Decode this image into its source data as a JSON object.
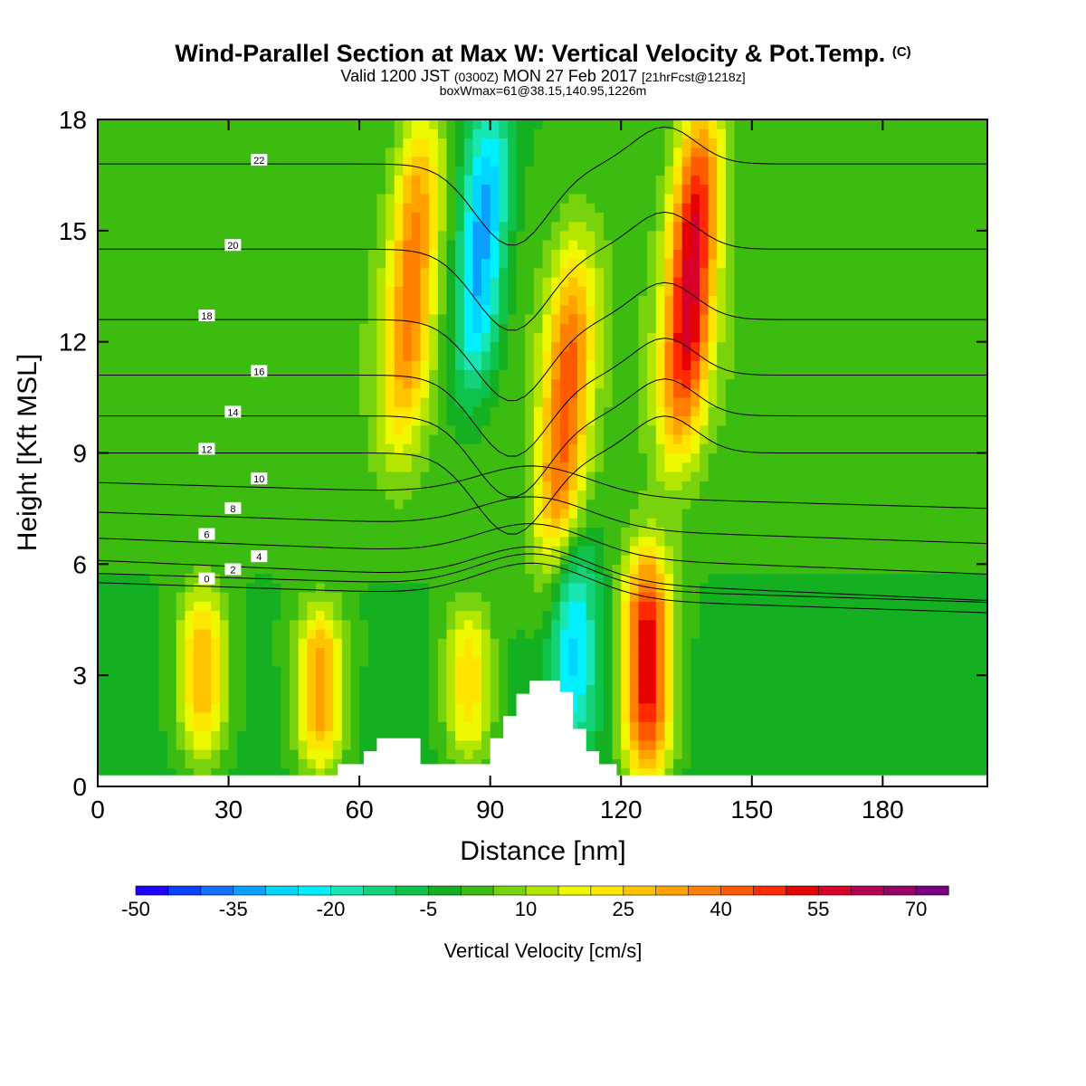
{
  "header": {
    "title": "Wind-Parallel Section at Max W: Vertical Velocity & Pot.Temp.",
    "title_mark": "(C)",
    "valid_prefix": "Valid 1200 JST",
    "valid_utc": "(0300Z)",
    "valid_date": "MON 27 Feb 2017",
    "valid_run": "[21hrFcst@1218z]",
    "box_info": "boxWmax=61@38.15,140.95,1226m"
  },
  "chart_data": {
    "type": "heatmap",
    "xlabel": "Distance [nm]",
    "ylabel": "Height [Kft MSL]",
    "xlim": [
      0,
      204
    ],
    "ylim": [
      0,
      18
    ],
    "xticks": [
      0,
      30,
      60,
      90,
      120,
      150,
      180
    ],
    "yticks": [
      0,
      3,
      6,
      9,
      12,
      15,
      18
    ],
    "colorbar": {
      "title": "Vertical Velocity [cm/s]",
      "levels": [
        -50,
        -45,
        -40,
        -35,
        -30,
        -25,
        -20,
        -15,
        -10,
        -5,
        0,
        5,
        10,
        15,
        20,
        25,
        30,
        35,
        40,
        45,
        50,
        55,
        60,
        65,
        70,
        75
      ],
      "tick_labels": [
        -50,
        -35,
        -20,
        -5,
        10,
        25,
        40,
        55,
        70
      ],
      "colors": [
        "#1e00ff",
        "#0c40ff",
        "#1670ff",
        "#0aa0ff",
        "#00d6ff",
        "#00f0ff",
        "#18e6b4",
        "#14d27a",
        "#0ec24a",
        "#14b022",
        "#3cbc10",
        "#78d20e",
        "#b4e600",
        "#eef800",
        "#ffe600",
        "#ffc400",
        "#ffa200",
        "#ff8000",
        "#ff5a00",
        "#ff2a00",
        "#e60000",
        "#d60028",
        "#b40050",
        "#960064",
        "#780080"
      ]
    },
    "w_updraft_cores": [
      {
        "x": 24,
        "z_bottom": 1.0,
        "z_top": 5.0,
        "w": 30
      },
      {
        "x": 51,
        "z_bottom": 0.8,
        "z_top": 4.5,
        "w": 35
      },
      {
        "x": 85,
        "z_bottom": 1.0,
        "z_top": 4.5,
        "w": 25
      },
      {
        "x": 72,
        "z_bottom": 9.5,
        "z_top": 18.0,
        "w": 35
      },
      {
        "x": 107,
        "z_bottom": 6.0,
        "z_top": 14.0,
        "w": 40
      },
      {
        "x": 126,
        "z_bottom": 0.5,
        "z_top": 6.0,
        "w": 55
      },
      {
        "x": 136,
        "z_bottom": 9.5,
        "z_top": 18.0,
        "w": 55
      }
    ],
    "w_downdraft_cores": [
      {
        "x": 88,
        "z_bottom": 11.0,
        "z_top": 18.0,
        "w": -35
      },
      {
        "x": 109,
        "z_bottom": 1.5,
        "z_top": 6.5,
        "w": -25
      }
    ],
    "theta_contours": [
      {
        "label": 0,
        "z_left": 5.5
      },
      {
        "label": 2,
        "z_left": 5.75
      },
      {
        "label": 4,
        "z_left": 6.1
      },
      {
        "label": 6,
        "z_left": 6.7
      },
      {
        "label": 8,
        "z_left": 7.4
      },
      {
        "label": 10,
        "z_left": 8.2
      },
      {
        "label": 12,
        "z_left": 9.0
      },
      {
        "label": 14,
        "z_left": 10.0
      },
      {
        "label": 16,
        "z_left": 11.1
      },
      {
        "label": 18,
        "z_left": 12.6
      },
      {
        "label": 20,
        "z_left": 14.5
      },
      {
        "label": 22,
        "z_left": 16.8
      }
    ],
    "terrain_profile": [
      [
        0,
        0.3
      ],
      [
        55,
        0.3
      ],
      [
        55,
        0.6
      ],
      [
        61,
        0.6
      ],
      [
        61,
        0.95
      ],
      [
        64,
        0.95
      ],
      [
        64,
        1.3
      ],
      [
        74,
        1.3
      ],
      [
        74,
        0.6
      ],
      [
        90,
        0.6
      ],
      [
        90,
        1.3
      ],
      [
        93,
        1.3
      ],
      [
        93,
        1.9
      ],
      [
        96,
        1.9
      ],
      [
        96,
        2.5
      ],
      [
        99,
        2.5
      ],
      [
        99,
        2.85
      ],
      [
        106,
        2.85
      ],
      [
        106,
        2.55
      ],
      [
        109,
        2.55
      ],
      [
        109,
        1.55
      ],
      [
        112,
        1.55
      ],
      [
        112,
        0.95
      ],
      [
        115,
        0.95
      ],
      [
        115,
        0.6
      ],
      [
        119,
        0.6
      ],
      [
        119,
        0.3
      ],
      [
        204,
        0.3
      ]
    ]
  }
}
